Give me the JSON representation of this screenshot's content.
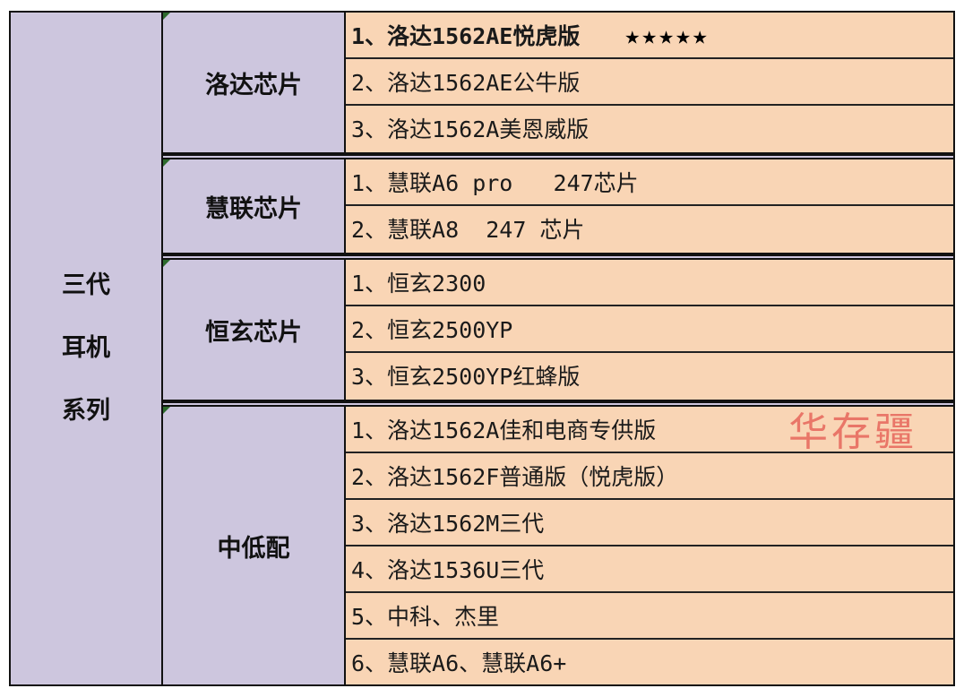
{
  "series": "三代\n耳机\n系列",
  "series_lines": [
    "三代",
    "耳机",
    "系列"
  ],
  "groups": [
    {
      "name": "洛达芯片",
      "items": [
        "1、洛达1562AE悦虎版",
        "2、洛达1562AE公牛版",
        "3、洛达1562A美恩威版"
      ]
    },
    {
      "name": "慧联芯片",
      "items": [
        "1、慧联A6 pro   247芯片",
        "2、慧联A8  247 芯片"
      ]
    },
    {
      "name": "恒玄芯片",
      "items": [
        "1、恒玄2300",
        "2、恒玄2500YP",
        "3、恒玄2500YP红蜂版"
      ]
    },
    {
      "name": "中低配",
      "items": [
        "1、洛达1562A佳和电商专供版",
        "2、洛达1562F普通版（悦虎版）",
        "3、洛达1562M三代",
        "4、洛达1536U三代",
        "5、中科、杰里",
        "6、慧联A6、慧联A6+"
      ]
    }
  ],
  "rating": {
    "stars": 5,
    "text": "★★★★★"
  },
  "watermark": "华存疆",
  "colors": {
    "label_bg": "#cdc6de",
    "item_bg": "#f9d5b5",
    "watermark": "#dc2828"
  }
}
